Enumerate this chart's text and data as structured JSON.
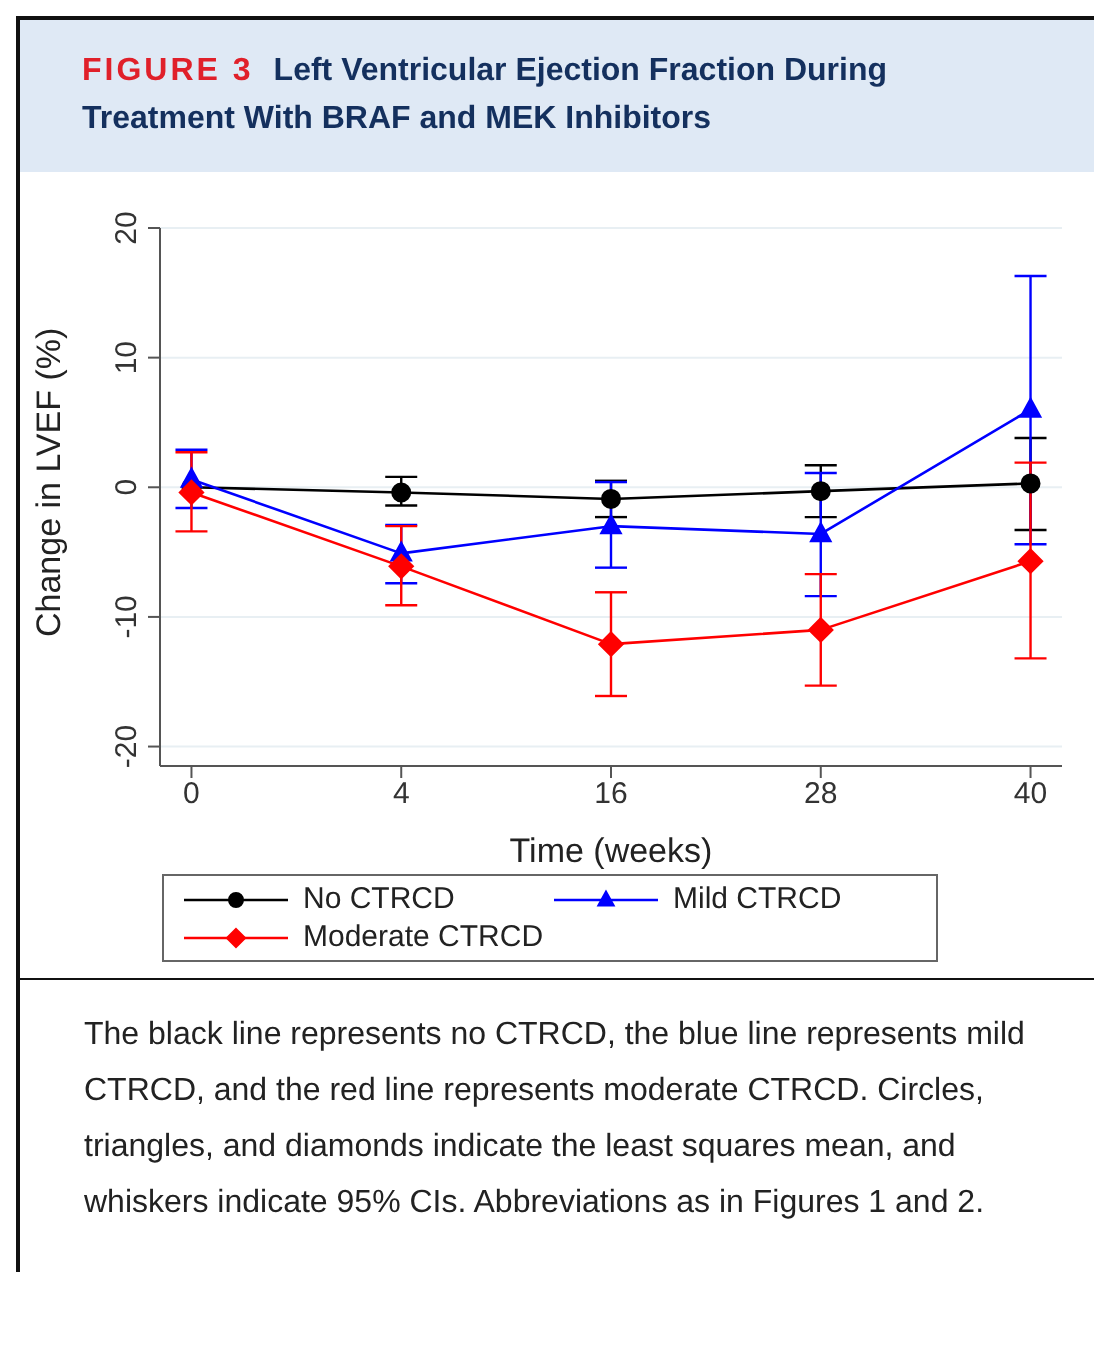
{
  "chart_data": {
    "type": "line",
    "title": "FIGURE 3 Left Ventricular Ejection Fraction During Treatment With BRAF and MEK Inhibitors",
    "xlabel": "Time (weeks)",
    "ylabel": "Change in LVEF (%)",
    "categories": [
      "0",
      "4",
      "16",
      "28",
      "40"
    ],
    "ylim": [
      -21.5,
      20
    ],
    "yticks": [
      -20,
      -10,
      0,
      10,
      20
    ],
    "grid": "y",
    "legend": "bottom",
    "line_style": "solid",
    "series": [
      {
        "name": "No CTRCD",
        "color": "#000000",
        "marker": "circle",
        "values": [
          0,
          -0.4,
          -0.9,
          -0.3,
          0.3
        ],
        "errors": [
          null,
          [
            -1.4,
            0.8
          ],
          [
            -2.3,
            0.5
          ],
          [
            -2.3,
            1.7
          ],
          [
            -3.3,
            3.8
          ]
        ]
      },
      {
        "name": "Mild CTRCD",
        "color": "#0000ff",
        "marker": "triangle",
        "values": [
          0.6,
          -5.1,
          -3,
          -3.6,
          6
        ],
        "errors": [
          [
            -1.6,
            2.9
          ],
          [
            -7.4,
            -2.9
          ],
          [
            -6.2,
            0.4
          ],
          [
            -8.4,
            1.1
          ],
          [
            -4.4,
            16.3
          ]
        ]
      },
      {
        "name": "Moderate CTRCD",
        "color": "#ff0000",
        "marker": "diamond",
        "values": [
          -0.4,
          -6.1,
          -12.1,
          -11,
          -5.7
        ],
        "errors": [
          [
            -3.4,
            2.7
          ],
          [
            -9.1,
            -3
          ],
          [
            -16.1,
            -8.1
          ],
          [
            -15.3,
            -6.7
          ],
          [
            -13.2,
            1.9
          ]
        ]
      }
    ],
    "annotations": [
      "The black line represents no CTRCD, the blue line represents mild CTRCD, and the red line represents moderate CTRCD. Circles, triangles, and diamonds indicate the least squares mean, and whiskers indicate 95% CIs. Abbreviations as in Figures 1 and 2."
    ]
  }
}
